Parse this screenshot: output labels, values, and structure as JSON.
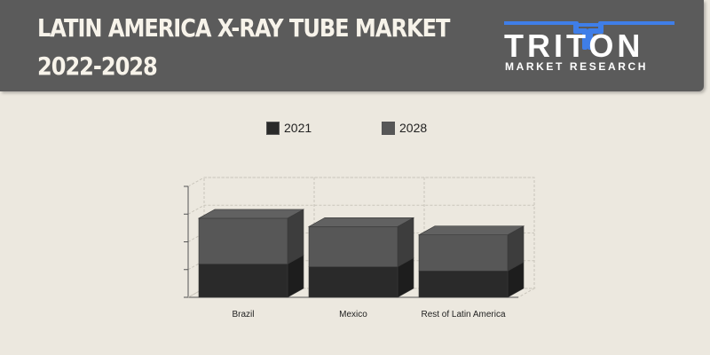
{
  "header": {
    "title_line1": "LATIN AMERICA X-RAY TUBE MARKET",
    "title_line2": "2022-2028"
  },
  "logo": {
    "name": "TRITON",
    "tagline": "MARKET RESEARCH",
    "accent_color": "#3f7ee8"
  },
  "colors": {
    "series_2021": "#2a2a2a",
    "series_2028": "#575757"
  },
  "chart_data": {
    "type": "bar",
    "stacked": true,
    "three_d": true,
    "categories": [
      "Brazil",
      "Mexico",
      "Rest of Latin America"
    ],
    "series": [
      {
        "name": "2021",
        "values": [
          1.2,
          1.1,
          0.95
        ]
      },
      {
        "name": "2028",
        "values": [
          1.65,
          1.45,
          1.3
        ]
      }
    ],
    "ylim": [
      0,
      4
    ],
    "y_ticks": [
      0,
      1,
      2,
      3,
      4
    ],
    "tick_labels_visible": false,
    "grid": true,
    "legend_position": "top"
  }
}
